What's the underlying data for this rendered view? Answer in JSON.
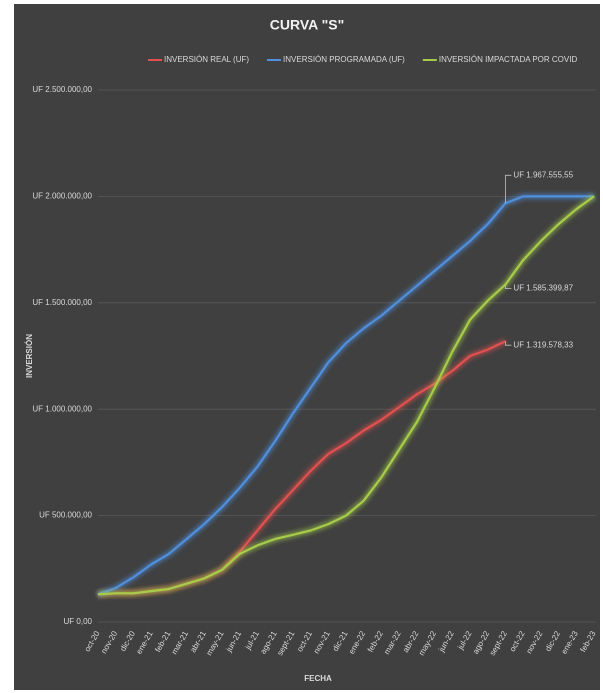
{
  "chart_data": {
    "type": "line",
    "title": "CURVA \"S\"",
    "x_label": "FECHA",
    "y_label": "INVERSIÓN",
    "categories": [
      "oct-20",
      "nov-20",
      "dic-20",
      "ene-21",
      "feb-21",
      "mar-21",
      "abr-21",
      "may-21",
      "jun-21",
      "jul-21",
      "ago-21",
      "sept-21",
      "oct-21",
      "nov-21",
      "dic-21",
      "ene-22",
      "feb-22",
      "mar-22",
      "abr-22",
      "may-22",
      "jun-22",
      "jul-22",
      "ago-22",
      "sept-22",
      "oct-22",
      "nov-22",
      "dic-22",
      "ene-23",
      "feb-23"
    ],
    "series": [
      {
        "name": "INVERSIÓN REAL (UF)",
        "color": "#e0514f",
        "values": [
          130000,
          135000,
          135000,
          145000,
          155000,
          180000,
          205000,
          245000,
          330000,
          430000,
          530000,
          620000,
          710000,
          790000,
          840000,
          900000,
          950000,
          1010000,
          1070000,
          1120000,
          1180000,
          1250000,
          1280000,
          1319578.33,
          null,
          null,
          null,
          null,
          null
        ],
        "value_labels": [
          null,
          null,
          null,
          null,
          null,
          null,
          null,
          null,
          null,
          null,
          null,
          null,
          null,
          null,
          null,
          null,
          null,
          null,
          null,
          null,
          null,
          null,
          null,
          "UF 1.319.578,33",
          null,
          null,
          null,
          null,
          null
        ]
      },
      {
        "name": "INVERSIÓN PROGRAMADA (UF)",
        "color": "#4f8fdd",
        "values": [
          130000,
          160000,
          210000,
          270000,
          320000,
          390000,
          460000,
          540000,
          630000,
          730000,
          850000,
          980000,
          1100000,
          1220000,
          1310000,
          1380000,
          1440000,
          1510000,
          1580000,
          1650000,
          1720000,
          1790000,
          1870000,
          1967555.55,
          2000000,
          2000000,
          2000000,
          2000000,
          2000000
        ],
        "value_labels": [
          null,
          null,
          null,
          null,
          null,
          null,
          null,
          null,
          null,
          null,
          null,
          null,
          null,
          null,
          null,
          null,
          null,
          null,
          null,
          null,
          null,
          null,
          null,
          "UF 1.967.555,55",
          null,
          null,
          null,
          null,
          null
        ]
      },
      {
        "name": "INVERSIÓN IMPACTADA POR COVID",
        "color": "#a6cc4a",
        "values": [
          130000,
          135000,
          135000,
          145000,
          155000,
          180000,
          205000,
          245000,
          320000,
          360000,
          390000,
          410000,
          430000,
          460000,
          500000,
          570000,
          680000,
          810000,
          940000,
          1100000,
          1270000,
          1420000,
          1510000,
          1585399.87,
          1700000,
          1790000,
          1870000,
          1940000,
          2000000
        ],
        "value_labels": [
          null,
          null,
          null,
          null,
          null,
          null,
          null,
          null,
          null,
          null,
          null,
          null,
          null,
          null,
          null,
          null,
          null,
          null,
          null,
          null,
          null,
          null,
          null,
          "UF 1.585.399,87",
          null,
          null,
          null,
          null,
          null
        ]
      }
    ],
    "ylim": [
      0,
      2500000
    ],
    "yticks": [
      {
        "value": 0,
        "label": "UF 0,00"
      },
      {
        "value": 500000,
        "label": "UF 500.000,00"
      },
      {
        "value": 1000000,
        "label": "UF 1.000.000,00"
      },
      {
        "value": 1500000,
        "label": "UF 1.500.000,00"
      },
      {
        "value": 2000000,
        "label": "UF 2.000.000,00"
      },
      {
        "value": 2500000,
        "label": "UF 2.500.000,00"
      }
    ],
    "grid": true,
    "legend": "top"
  }
}
